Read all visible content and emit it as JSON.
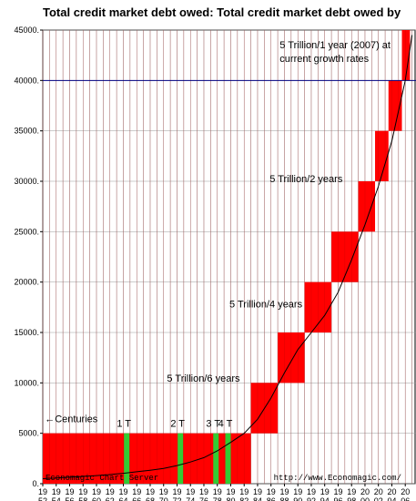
{
  "chart_data": {
    "type": "bar",
    "title": "Total credit market debt owed: Total credit market debt owed by",
    "x_tick_labels": [
      [
        "19",
        "52"
      ],
      [
        "19",
        "54"
      ],
      [
        "19",
        "56"
      ],
      [
        "19",
        "58"
      ],
      [
        "19",
        "60"
      ],
      [
        "19",
        "62"
      ],
      [
        "19",
        "64"
      ],
      [
        "19",
        "66"
      ],
      [
        "19",
        "68"
      ],
      [
        "19",
        "70"
      ],
      [
        "19",
        "72"
      ],
      [
        "19",
        "74"
      ],
      [
        "19",
        "76"
      ],
      [
        "19",
        "78"
      ],
      [
        "19",
        "80"
      ],
      [
        "19",
        "82"
      ],
      [
        "19",
        "84"
      ],
      [
        "19",
        "86"
      ],
      [
        "19",
        "88"
      ],
      [
        "19",
        "90"
      ],
      [
        "19",
        "92"
      ],
      [
        "19",
        "94"
      ],
      [
        "19",
        "96"
      ],
      [
        "19",
        "98"
      ],
      [
        "20",
        "00"
      ],
      [
        "20",
        "02"
      ],
      [
        "20",
        "04"
      ],
      [
        "20",
        "06"
      ]
    ],
    "x_years": [
      1952,
      1954,
      1956,
      1958,
      1960,
      1962,
      1964,
      1966,
      1968,
      1970,
      1972,
      1974,
      1976,
      1978,
      1980,
      1982,
      1984,
      1986,
      1988,
      1990,
      1992,
      1994,
      1996,
      1998,
      2000,
      2002,
      2004,
      2006
    ],
    "y_tick_labels": [
      "0.",
      "5000.",
      "10000.",
      "15000.",
      "20000.",
      "25000.",
      "30000.",
      "35000.",
      "40000.",
      "45000."
    ],
    "y_ticks": [
      0,
      5000,
      10000,
      15000,
      20000,
      25000,
      30000,
      35000,
      40000,
      45000
    ],
    "ylim": [
      0,
      45000
    ],
    "xlim": [
      1952,
      2007.6
    ],
    "grid": true,
    "red_blocks": [
      {
        "x0": 1952,
        "x1": 1983,
        "y0": 0,
        "y1": 5000
      },
      {
        "x0": 1983,
        "x1": 1987,
        "y0": 5000,
        "y1": 10000
      },
      {
        "x0": 1987,
        "x1": 1991,
        "y0": 10000,
        "y1": 15000
      },
      {
        "x0": 1991,
        "x1": 1995,
        "y0": 15000,
        "y1": 20000
      },
      {
        "x0": 1995,
        "x1": 1999,
        "y0": 20000,
        "y1": 25000
      },
      {
        "x0": 1999,
        "x1": 2001.5,
        "y0": 25000,
        "y1": 30000
      },
      {
        "x0": 2001.5,
        "x1": 2003.5,
        "y0": 30000,
        "y1": 35000
      },
      {
        "x0": 2003.5,
        "x1": 2005.5,
        "y0": 35000,
        "y1": 40000
      },
      {
        "x0": 2005.5,
        "x1": 2006.7,
        "y0": 40000,
        "y1": 45000
      }
    ],
    "green_markers": [
      {
        "label": "1 T",
        "year": 1964.5,
        "value": 1000
      },
      {
        "label": "2 T",
        "year": 1972.5,
        "value": 2000
      },
      {
        "label": "3 T",
        "year": 1977.8,
        "value": 3000
      },
      {
        "label": "4 T",
        "year": 1979.6,
        "value": 4000
      }
    ],
    "reference_line": {
      "value": 40000,
      "color": "#000080"
    },
    "series": [
      {
        "x": [
          1952,
          1954,
          1956,
          1958,
          1960,
          1962,
          1964,
          1966,
          1968,
          1970,
          1972,
          1974,
          1976,
          1978,
          1980,
          1982,
          1984,
          1986,
          1988,
          1990,
          1992,
          1994,
          1996,
          1998,
          2000,
          2002,
          2004,
          2006,
          2007
        ],
        "values": [
          500,
          560,
          640,
          720,
          800,
          900,
          1030,
          1180,
          1340,
          1520,
          1800,
          2150,
          2580,
          3250,
          4100,
          5000,
          6400,
          8500,
          11000,
          13300,
          15000,
          16700,
          19000,
          22200,
          25700,
          29500,
          34000,
          40000,
          44500
        ]
      }
    ],
    "annotations": [
      {
        "text": "5 Trillion/1 year (2007) at",
        "year": 1987.3,
        "value": 43200
      },
      {
        "text": "current growth rates",
        "year": 1987.3,
        "value": 41850
      },
      {
        "text": "5 Trillion/2 years",
        "year": 1985.8,
        "value": 29900
      },
      {
        "text": "5 Trillion/4 years",
        "year": 1979.8,
        "value": 17500
      },
      {
        "text": "5 Trillion/6 years",
        "year": 1970.5,
        "value": 10100
      },
      {
        "text": "←Centuries",
        "year": 1952.3,
        "value": 6100
      }
    ],
    "credits": {
      "left": "Economagic Chart Server",
      "right": "http://www.Economagic.com/"
    },
    "colors": {
      "bar": "#ff0000",
      "marker": "#33cc33",
      "grid": "#999999",
      "curve": "#000000"
    }
  }
}
